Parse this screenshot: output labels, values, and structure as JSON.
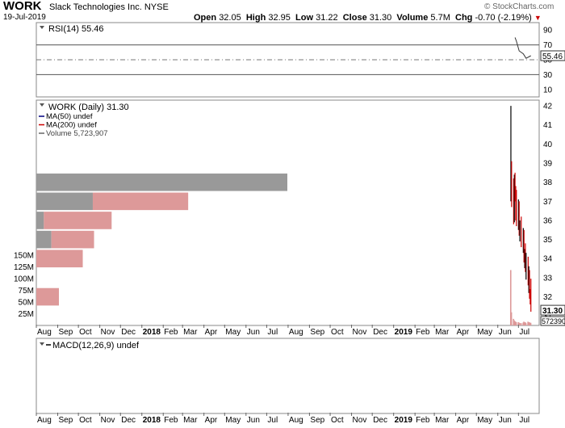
{
  "header": {
    "ticker": "WORK",
    "company": "Slack Technologies Inc.",
    "exchange": "NYSE",
    "date": "19-Jul-2019",
    "credit": "© StockCharts.com",
    "quote": {
      "open_label": "Open",
      "open": "32.05",
      "high_label": "High",
      "high": "32.95",
      "low_label": "Low",
      "low": "31.22",
      "close_label": "Close",
      "close": "31.30",
      "volume_label": "Volume",
      "volume": "5.7M",
      "chg_label": "Chg",
      "chg": "-0.70 (-2.19%)"
    }
  },
  "chart_data": [
    {
      "type": "line",
      "title": "RSI(14) 55.46",
      "ylim": [
        0,
        100
      ],
      "y_ticks": [
        10,
        30,
        50,
        70,
        90
      ],
      "reference_lines": [
        30,
        50,
        70
      ],
      "last_value_label": "55.46",
      "series": [
        {
          "values": [
            {
              "date": "2019-06-26",
              "value": 80
            },
            {
              "date": "2019-06-28",
              "value": 75
            },
            {
              "date": "2019-07-02",
              "value": 62
            },
            {
              "date": "2019-07-08",
              "value": 58
            },
            {
              "date": "2019-07-12",
              "value": 52
            },
            {
              "date": "2019-07-19",
              "value": 55.46
            }
          ]
        }
      ],
      "color": "#333333"
    },
    {
      "type": "bar",
      "title": "WORK (Daily) 31.30",
      "legend": [
        "MA(50) undef",
        "MA(200) undef",
        "Volume 5,723,907"
      ],
      "legend_colors": [
        "#000080",
        "#cc0000",
        "#666666"
      ],
      "price_axis": {
        "ylim": [
          30.5,
          42.3
        ],
        "ticks": [
          31,
          32,
          33,
          34,
          35,
          36,
          37,
          38,
          39,
          40,
          41,
          42
        ]
      },
      "last_price_label": "31.30",
      "volume_axis": {
        "ylim": [
          0,
          160
        ],
        "ticks": [
          25,
          50,
          75,
          100,
          125,
          150
        ],
        "tick_labels": [
          "25M",
          "50M",
          "75M",
          "100M",
          "125M",
          "150M"
        ]
      },
      "last_volume_label": "5723907",
      "x_axis": {
        "start": "2017-08-01",
        "end": "2019-07-31",
        "ticks": [
          {
            "label": "Aug",
            "date": "2017-08-01",
            "bold": false
          },
          {
            "label": "Sep",
            "date": "2017-09-01",
            "bold": false
          },
          {
            "label": "Oct",
            "date": "2017-10-01",
            "bold": false
          },
          {
            "label": "Nov",
            "date": "2017-11-01",
            "bold": false
          },
          {
            "label": "Dec",
            "date": "2017-12-01",
            "bold": false
          },
          {
            "label": "2018",
            "date": "2018-01-01",
            "bold": true
          },
          {
            "label": "Feb",
            "date": "2018-02-01",
            "bold": false
          },
          {
            "label": "Mar",
            "date": "2018-03-01",
            "bold": false
          },
          {
            "label": "Apr",
            "date": "2018-04-01",
            "bold": false
          },
          {
            "label": "May",
            "date": "2018-05-01",
            "bold": false
          },
          {
            "label": "Jun",
            "date": "2018-06-01",
            "bold": false
          },
          {
            "label": "Jul",
            "date": "2018-07-01",
            "bold": false
          },
          {
            "label": "Aug",
            "date": "2018-08-01",
            "bold": false
          },
          {
            "label": "Sep",
            "date": "2018-09-01",
            "bold": false
          },
          {
            "label": "Oct",
            "date": "2018-10-01",
            "bold": false
          },
          {
            "label": "Nov",
            "date": "2018-11-01",
            "bold": false
          },
          {
            "label": "Dec",
            "date": "2018-12-01",
            "bold": false
          },
          {
            "label": "2019",
            "date": "2019-01-01",
            "bold": true
          },
          {
            "label": "Feb",
            "date": "2019-02-01",
            "bold": false
          },
          {
            "label": "Mar",
            "date": "2019-03-01",
            "bold": false
          },
          {
            "label": "Apr",
            "date": "2019-04-01",
            "bold": false
          },
          {
            "label": "May",
            "date": "2019-05-01",
            "bold": false
          },
          {
            "label": "Jun",
            "date": "2019-06-01",
            "bold": false
          },
          {
            "label": "Jul",
            "date": "2019-07-01",
            "bold": false
          }
        ]
      },
      "volume_by_price": [
        {
          "price_low": 37.5,
          "price_high": 38.5,
          "up": 0,
          "down": 100
        },
        {
          "price_low": 36.5,
          "price_high": 37.5,
          "up": 38,
          "down": 22.5
        },
        {
          "price_low": 35.5,
          "price_high": 36.5,
          "up": 27,
          "down": 3
        },
        {
          "price_low": 34.5,
          "price_high": 35.5,
          "up": 17,
          "down": 6
        },
        {
          "price_low": 33.5,
          "price_high": 34.5,
          "up": 18.5,
          "down": 0
        },
        {
          "price_low": 31.5,
          "price_high": 32.5,
          "up": 9,
          "down": 0
        }
      ],
      "volume_by_price_colors": {
        "up": "#dd9999",
        "down": "#999999"
      },
      "candles": [
        {
          "date": "2019-06-20",
          "open": 38.5,
          "high": 42.0,
          "low": 37.0,
          "close": 38.6
        },
        {
          "date": "2019-06-21",
          "open": 38.6,
          "high": 39.1,
          "low": 36.7,
          "close": 37.9
        },
        {
          "date": "2019-06-24",
          "open": 37.9,
          "high": 38.2,
          "low": 35.8,
          "close": 36.0
        },
        {
          "date": "2019-06-25",
          "open": 36.0,
          "high": 38.4,
          "low": 35.9,
          "close": 38.2
        },
        {
          "date": "2019-06-26",
          "open": 38.2,
          "high": 38.5,
          "low": 37.0,
          "close": 37.4
        },
        {
          "date": "2019-06-27",
          "open": 37.4,
          "high": 37.8,
          "low": 36.0,
          "close": 37.0
        },
        {
          "date": "2019-06-28",
          "open": 37.0,
          "high": 37.6,
          "low": 35.7,
          "close": 36.0
        },
        {
          "date": "2019-07-01",
          "open": 36.0,
          "high": 37.1,
          "low": 35.5,
          "close": 36.8
        },
        {
          "date": "2019-07-02",
          "open": 36.8,
          "high": 37.0,
          "low": 35.2,
          "close": 35.4
        },
        {
          "date": "2019-07-03",
          "open": 35.4,
          "high": 36.0,
          "low": 34.9,
          "close": 35.8
        },
        {
          "date": "2019-07-05",
          "open": 35.8,
          "high": 36.2,
          "low": 34.6,
          "close": 35.0
        },
        {
          "date": "2019-07-08",
          "open": 35.0,
          "high": 35.6,
          "low": 34.3,
          "close": 35.3
        },
        {
          "date": "2019-07-09",
          "open": 35.3,
          "high": 35.5,
          "low": 33.8,
          "close": 34.1
        },
        {
          "date": "2019-07-10",
          "open": 34.1,
          "high": 34.5,
          "low": 33.5,
          "close": 34.4
        },
        {
          "date": "2019-07-11",
          "open": 34.4,
          "high": 34.8,
          "low": 33.3,
          "close": 33.6
        },
        {
          "date": "2019-07-12",
          "open": 33.6,
          "high": 34.3,
          "low": 32.9,
          "close": 34.0
        },
        {
          "date": "2019-07-15",
          "open": 34.0,
          "high": 34.1,
          "low": 32.6,
          "close": 32.8
        },
        {
          "date": "2019-07-16",
          "open": 32.8,
          "high": 33.6,
          "low": 32.2,
          "close": 33.2
        },
        {
          "date": "2019-07-17",
          "open": 33.2,
          "high": 33.4,
          "low": 31.9,
          "close": 32.3
        },
        {
          "date": "2019-07-18",
          "open": 32.3,
          "high": 32.4,
          "low": 31.6,
          "close": 32.0
        },
        {
          "date": "2019-07-19",
          "open": 32.05,
          "high": 32.95,
          "low": 31.22,
          "close": 31.3
        }
      ],
      "volumes_millions": [
        {
          "date": "2019-06-20",
          "value": 118
        },
        {
          "date": "2019-06-21",
          "value": 28
        },
        {
          "date": "2019-06-24",
          "value": 14
        },
        {
          "date": "2019-06-25",
          "value": 11
        },
        {
          "date": "2019-06-26",
          "value": 9
        },
        {
          "date": "2019-06-27",
          "value": 8
        },
        {
          "date": "2019-06-28",
          "value": 7
        },
        {
          "date": "2019-07-01",
          "value": 7
        },
        {
          "date": "2019-07-02",
          "value": 6
        },
        {
          "date": "2019-07-03",
          "value": 5
        },
        {
          "date": "2019-07-05",
          "value": 5
        },
        {
          "date": "2019-07-08",
          "value": 6
        },
        {
          "date": "2019-07-09",
          "value": 8
        },
        {
          "date": "2019-07-10",
          "value": 6
        },
        {
          "date": "2019-07-11",
          "value": 7
        },
        {
          "date": "2019-07-12",
          "value": 5
        },
        {
          "date": "2019-07-15",
          "value": 8
        },
        {
          "date": "2019-07-16",
          "value": 6
        },
        {
          "date": "2019-07-17",
          "value": 7
        },
        {
          "date": "2019-07-18",
          "value": 5
        },
        {
          "date": "2019-07-19",
          "value": 5.7
        }
      ],
      "up_color": "#000000",
      "down_color": "#cc0000",
      "volume_color": "#dd9999"
    },
    {
      "type": "line",
      "title": "MACD(12,26,9) undef",
      "series": []
    }
  ]
}
